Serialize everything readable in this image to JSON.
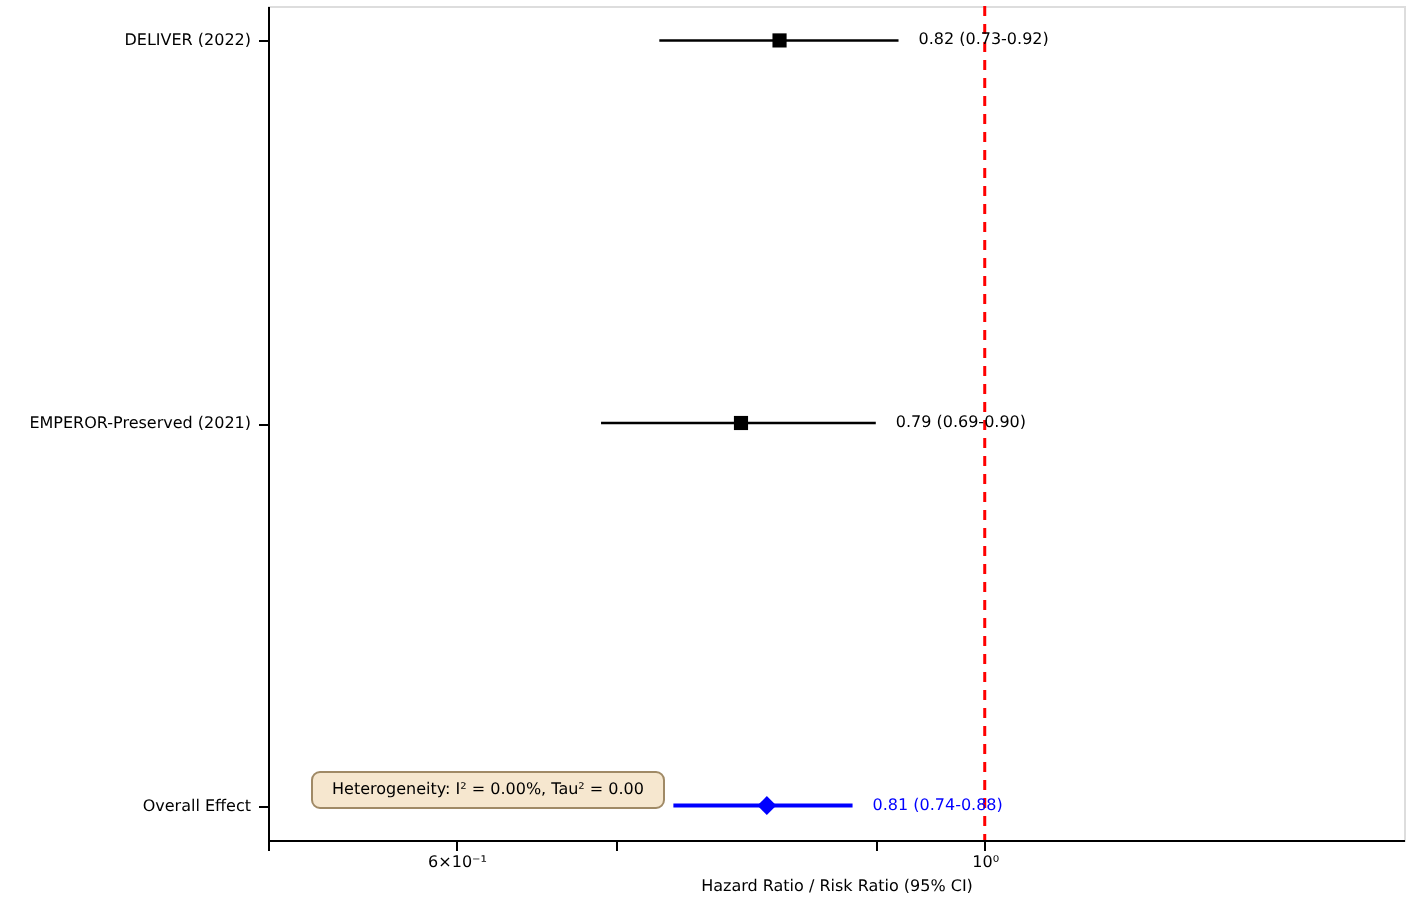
{
  "chart_data": {
    "type": "scatter",
    "orientation": "horizontal",
    "categories": [
      "DELIVER (2022)",
      "EMPEROR-Preserved (2021)",
      "Overall Effect"
    ],
    "series": [
      {
        "color": "#000000",
        "marker": "square",
        "values": [
          0.82,
          0.79,
          null
        ],
        "errors": [
          [
            0.73,
            0.92
          ],
          [
            0.69,
            0.9
          ],
          null
        ]
      },
      {
        "color": "#0000ff",
        "marker": "diamond",
        "values": [
          null,
          null,
          0.81
        ],
        "errors": [
          null,
          null,
          [
            0.74,
            0.88
          ]
        ]
      }
    ],
    "xlabel": "Hazard Ratio / Risk Ratio (95% CI)",
    "log": "x",
    "xlim": [
      0.5,
      1.5
    ],
    "xticks": [
      {
        "value": 0.5,
        "label": null
      },
      {
        "value": 0.6,
        "label": "6×10⁻¹"
      },
      {
        "value": 0.7,
        "label": null
      },
      {
        "value": 0.9,
        "label": null
      },
      {
        "value": 1,
        "label": "10⁰"
      }
    ],
    "ref_lines": [
      {
        "axis": "x",
        "value": 1,
        "color": "#ff0000",
        "line_style": "dashed"
      }
    ],
    "annotations": [
      {
        "text": "0.82 (0.73-0.92)",
        "x": 0.92,
        "y": "DELIVER (2022)"
      },
      {
        "text": "0.79 (0.69-0.90)",
        "x": 0.9,
        "y": "EMPEROR-Preserved (2021)"
      },
      {
        "text": "0.81 (0.74-0.88)",
        "x": 0.88,
        "y": "Overall Effect"
      },
      "Heterogeneity: I² = 0.00%, Tau² = 0.00"
    ],
    "grid": false
  }
}
